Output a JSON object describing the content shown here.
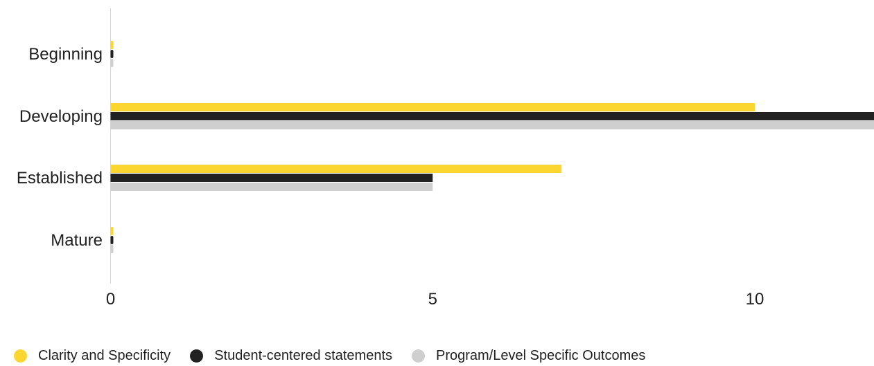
{
  "chart_data": {
    "type": "bar",
    "orientation": "horizontal",
    "categories": [
      "Beginning",
      "Developing",
      "Established",
      "Mature"
    ],
    "series": [
      {
        "name": "Clarity and Specificity",
        "values": [
          0,
          10,
          7,
          0
        ],
        "color": "#fbd631"
      },
      {
        "name": "Student-centered statements",
        "values": [
          0,
          12,
          5,
          0
        ],
        "color": "#222222"
      },
      {
        "name": "Program/Level Specific Outcomes",
        "values": [
          0,
          12,
          5,
          0
        ],
        "color": "#cfcfcf"
      }
    ],
    "x_ticks": [
      "0",
      "5",
      "10"
    ],
    "xlim": [
      0,
      11.85
    ],
    "grid": false,
    "legend_position": "bottom-left"
  }
}
